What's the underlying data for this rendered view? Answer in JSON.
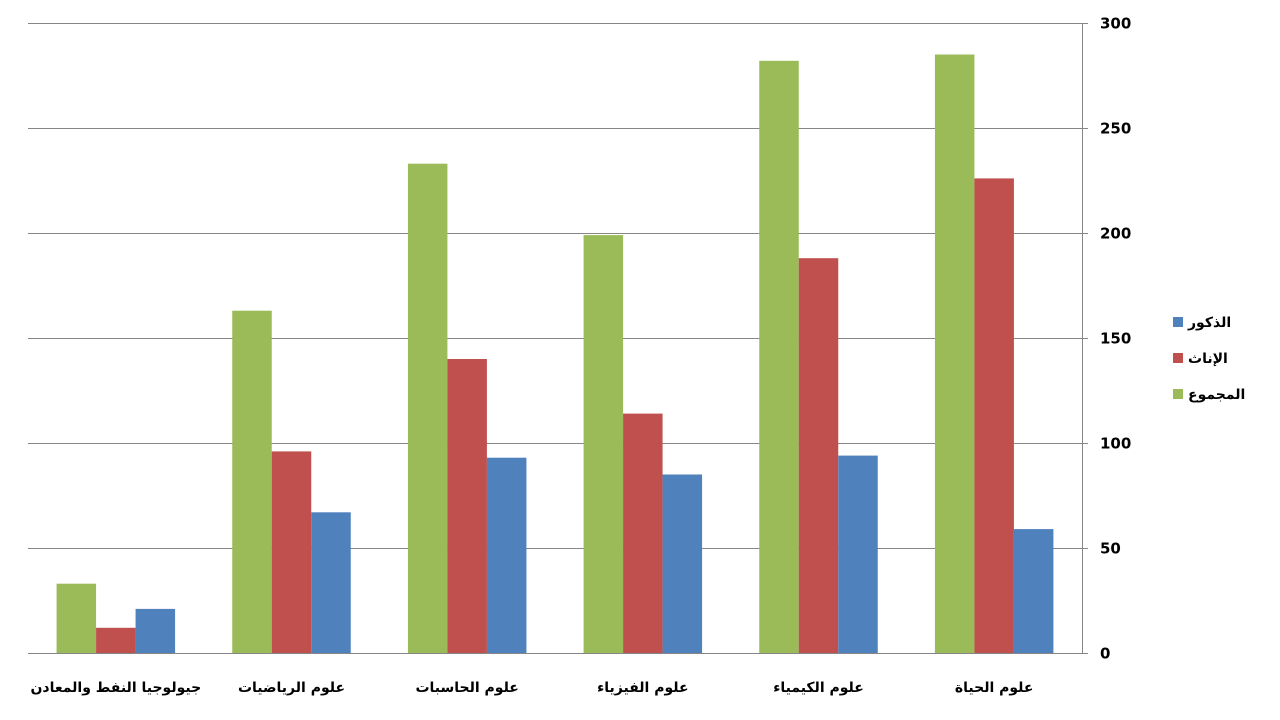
{
  "chart_data": {
    "type": "bar",
    "title": "",
    "xlabel": "",
    "ylabel": "",
    "ylim": [
      0,
      300
    ],
    "yticks": [
      0,
      50,
      100,
      150,
      200,
      250,
      300
    ],
    "y_axis_side": "right",
    "category_order": "right-to-left",
    "grid": true,
    "legend_position": "right",
    "categories": [
      "علوم الحياة",
      "علوم الكيمياء",
      "علوم الفيزياء",
      "علوم الحاسبات",
      "علوم الرياضيات",
      "جيولوجيا النفط والمعادن"
    ],
    "series": [
      {
        "name": "الذكور",
        "color": "#4F81BD",
        "values": [
          59,
          94,
          85,
          93,
          67,
          21
        ]
      },
      {
        "name": "الإناث",
        "color": "#C0504D",
        "values": [
          226,
          188,
          114,
          140,
          96,
          12
        ]
      },
      {
        "name": "المجموع",
        "color": "#9BBB59",
        "values": [
          285,
          282,
          199,
          233,
          163,
          33
        ]
      }
    ]
  }
}
